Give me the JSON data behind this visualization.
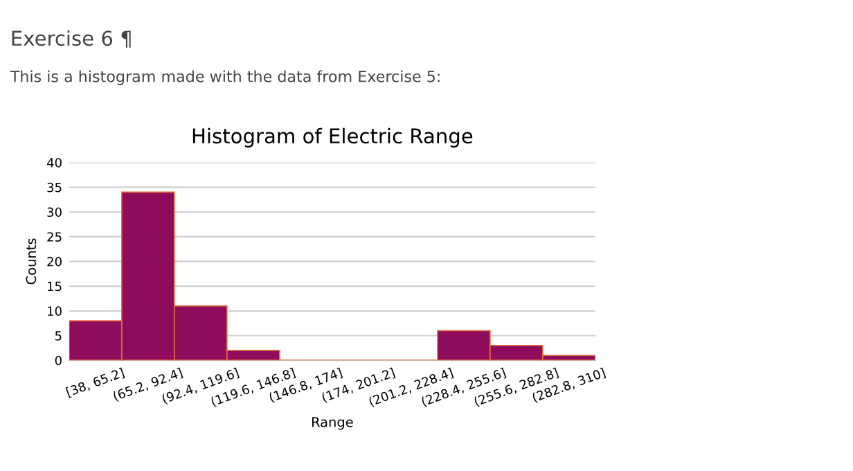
{
  "chart_data": {
    "type": "bar",
    "title": "Histogram of Electric Range",
    "xlabel": "Range",
    "ylabel": "Counts",
    "annotations": [
      "Exercise 6 ¶",
      "This is a histogram made with the data from Exercise 5:"
    ],
    "categories": [
      "[38, 65.2]",
      "(65.2, 92.4]",
      "(92.4, 119.6]",
      "(119.6, 146.8]",
      "(146.8, 174]",
      "(174, 201.2]",
      "(201.2, 228.4]",
      "(228.4, 255.6]",
      "(255.6, 282.8]",
      "(282.8, 310]"
    ],
    "values": [
      8,
      34,
      11,
      2,
      0,
      0,
      0,
      6,
      3,
      1
    ],
    "color": "#8e0c5b",
    "ylim": [
      0,
      40
    ],
    "yticks": [
      0,
      5,
      10,
      15,
      20,
      25,
      30,
      35,
      40
    ],
    "grid": "y"
  }
}
